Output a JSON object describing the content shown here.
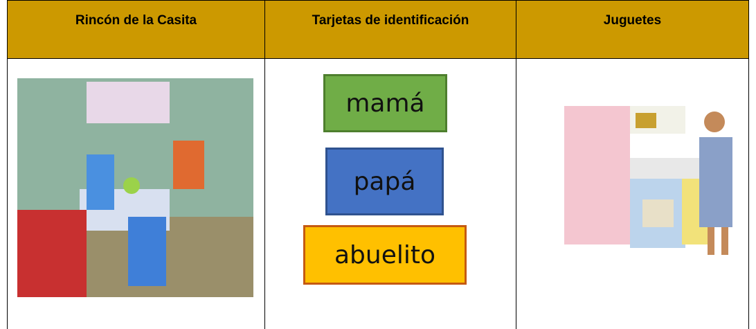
{
  "table": {
    "header": [
      "Rincón de la Casita",
      "Tarjetas de identificación",
      "Juguetes"
    ],
    "cards": [
      "mamá",
      "papá",
      "abuelito"
    ]
  }
}
